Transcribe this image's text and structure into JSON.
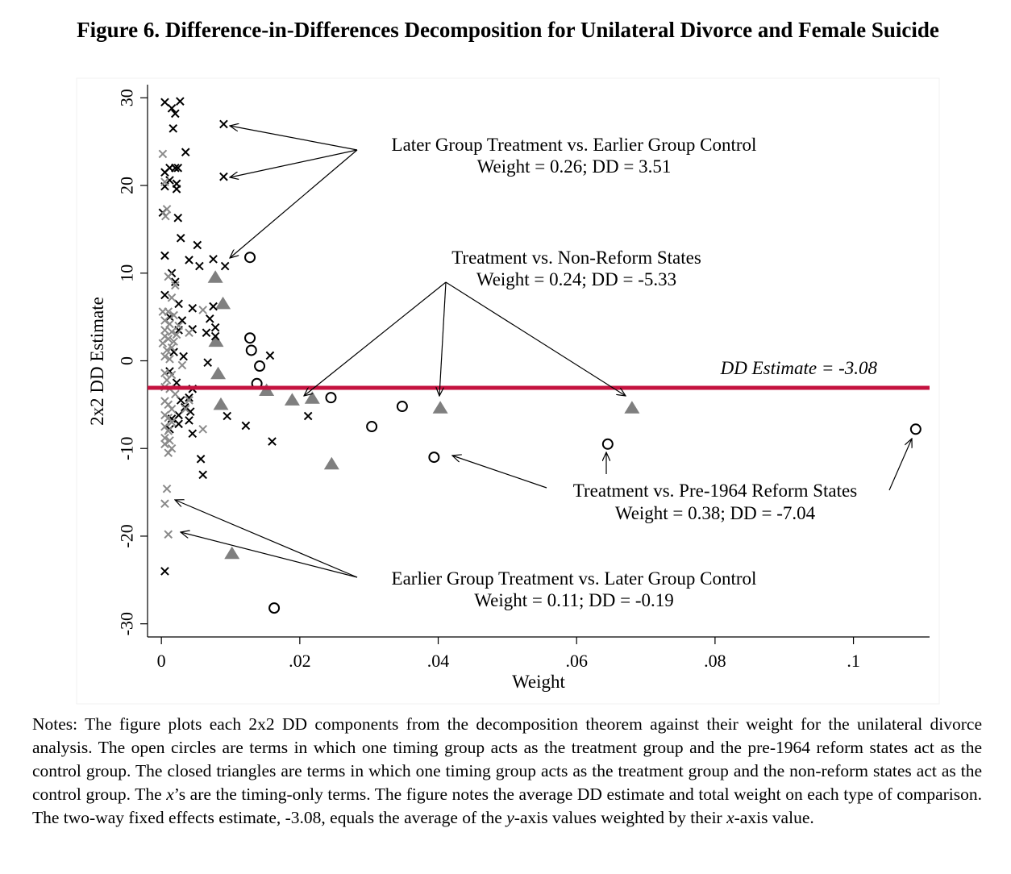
{
  "figure": {
    "title": "Figure 6. Difference-in-Differences Decomposition for Unilateral Divorce and Female Suicide",
    "notes_html": "Notes: The figure plots each 2x2 DD components from the decomposition theorem against their weight for the unilateral divorce analysis. The open circles are terms in which one timing group acts as the treatment group and the pre-1964 reform states act as the control group. The closed triangles are terms in which one timing group acts as the treatment group and the non-reform states act as the control group. The <i>x</i>’s are the timing-only terms. The figure notes the average DD estimate and total weight on each type of comparison. The two-way fixed effects estimate, -3.08, equals the average of the <i>y</i>-axis values weighted by their <i>x</i>-axis value."
  },
  "chart_data": {
    "type": "scatter",
    "xlabel": "Weight",
    "ylabel": "2x2 DD Estimate",
    "xlim": [
      -0.002,
      0.111
    ],
    "ylim": [
      -31.5,
      31.5
    ],
    "x_ticks": [
      0,
      0.02,
      0.04,
      0.06,
      0.08,
      0.1
    ],
    "x_tick_labels": [
      "0",
      ".02",
      ".04",
      ".06",
      ".08",
      ".1"
    ],
    "y_ticks": [
      -30,
      -20,
      -10,
      0,
      10,
      20,
      30
    ],
    "y_tick_labels": [
      "-30",
      "-20",
      "-10",
      "0",
      "10",
      "20",
      "30"
    ],
    "grid": false,
    "reference_line": {
      "y": -3.08,
      "color": "#c4123f",
      "label": "DD Estimate = -3.08"
    },
    "colors": {
      "black_x": "#000000",
      "gray_x": "#8a8a8a",
      "triangle": "#7f7f7f",
      "circle": "#000000"
    },
    "series": [
      {
        "marker": "circle-open",
        "points": [
          [
            0.0128,
            11.8
          ],
          [
            0.0128,
            2.6
          ],
          [
            0.013,
            1.2
          ],
          [
            0.0142,
            -0.6
          ],
          [
            0.0138,
            -2.6
          ],
          [
            0.0245,
            -4.2
          ],
          [
            0.0163,
            -28.2
          ],
          [
            0.0304,
            -7.5
          ],
          [
            0.0348,
            -5.2
          ],
          [
            0.0394,
            -11.0
          ],
          [
            0.0645,
            -9.5
          ],
          [
            0.109,
            -7.8
          ]
        ]
      },
      {
        "marker": "triangle-filled",
        "points": [
          [
            0.0078,
            9.5
          ],
          [
            0.0089,
            6.5
          ],
          [
            0.0079,
            2.2
          ],
          [
            0.0082,
            -1.5
          ],
          [
            0.0086,
            -5.0
          ],
          [
            0.0152,
            -3.4
          ],
          [
            0.0189,
            -4.5
          ],
          [
            0.0218,
            -4.3
          ],
          [
            0.0403,
            -5.4
          ],
          [
            0.068,
            -5.4
          ],
          [
            0.0246,
            -11.8
          ],
          [
            0.0102,
            -22.0
          ]
        ]
      },
      {
        "marker": "x-black",
        "points": [
          [
            0.0005,
            29.5
          ],
          [
            0.0015,
            28.8
          ],
          [
            0.0027,
            29.6
          ],
          [
            0.002,
            28.2
          ],
          [
            0.0017,
            26.5
          ],
          [
            0.009,
            27.0
          ],
          [
            0.0035,
            23.8
          ],
          [
            0.0012,
            22.0
          ],
          [
            0.002,
            22.0
          ],
          [
            0.0024,
            22.0
          ],
          [
            0.0005,
            21.5
          ],
          [
            0.009,
            21.0
          ],
          [
            0.0012,
            20.6
          ],
          [
            0.0022,
            20.2
          ],
          [
            0.0005,
            19.9
          ],
          [
            0.0022,
            19.6
          ],
          [
            0.0002,
            16.9
          ],
          [
            0.0024,
            16.3
          ],
          [
            0.0028,
            14.0
          ],
          [
            0.0052,
            13.2
          ],
          [
            0.0005,
            12.0
          ],
          [
            0.004,
            11.5
          ],
          [
            0.0055,
            10.8
          ],
          [
            0.0075,
            11.6
          ],
          [
            0.0092,
            10.8
          ],
          [
            0.0015,
            10.0
          ],
          [
            0.002,
            9.0
          ],
          [
            0.0005,
            7.5
          ],
          [
            0.0025,
            6.5
          ],
          [
            0.0045,
            6.0
          ],
          [
            0.0075,
            6.2
          ],
          [
            0.007,
            4.8
          ],
          [
            0.0012,
            5.0
          ],
          [
            0.003,
            4.6
          ],
          [
            0.0078,
            3.8
          ],
          [
            0.0045,
            3.6
          ],
          [
            0.0025,
            3.5
          ],
          [
            0.0065,
            3.2
          ],
          [
            0.0078,
            2.8
          ],
          [
            0.0018,
            1.0
          ],
          [
            0.0032,
            0.5
          ],
          [
            0.0157,
            0.6
          ],
          [
            0.0067,
            -0.2
          ],
          [
            0.0012,
            -1.2
          ],
          [
            0.0022,
            -2.5
          ],
          [
            0.0045,
            -3.2
          ],
          [
            0.0028,
            -4.5
          ],
          [
            0.004,
            -4.2
          ],
          [
            0.0034,
            -5.3
          ],
          [
            0.0042,
            -5.8
          ],
          [
            0.0025,
            -6.2
          ],
          [
            0.0015,
            -6.6
          ],
          [
            0.004,
            -6.8
          ],
          [
            0.0095,
            -6.3
          ],
          [
            0.0212,
            -6.3
          ],
          [
            0.0122,
            -7.4
          ],
          [
            0.0025,
            -7.2
          ],
          [
            0.0012,
            -7.8
          ],
          [
            0.0045,
            -8.3
          ],
          [
            0.016,
            -9.2
          ],
          [
            0.0057,
            -11.2
          ],
          [
            0.006,
            -13.0
          ],
          [
            0.0005,
            -24.0
          ]
        ]
      },
      {
        "marker": "x-gray",
        "points": [
          [
            0.0002,
            23.6
          ],
          [
            0.0005,
            20.4
          ],
          [
            0.0008,
            17.3
          ],
          [
            0.0006,
            16.5
          ],
          [
            0.001,
            9.6
          ],
          [
            0.002,
            8.6
          ],
          [
            0.0015,
            7.2
          ],
          [
            0.0002,
            5.6
          ],
          [
            0.001,
            5.6
          ],
          [
            0.0018,
            5.2
          ],
          [
            0.0005,
            4.6
          ],
          [
            0.0012,
            4.2
          ],
          [
            0.0025,
            4.0
          ],
          [
            0.0005,
            3.5
          ],
          [
            0.0015,
            3.3
          ],
          [
            0.0022,
            3.0
          ],
          [
            0.004,
            3.2
          ],
          [
            0.006,
            5.8
          ],
          [
            0.0005,
            2.8
          ],
          [
            0.001,
            2.5
          ],
          [
            0.0002,
            2.0
          ],
          [
            0.0018,
            2.2
          ],
          [
            0.0008,
            1.2
          ],
          [
            0.0015,
            1.5
          ],
          [
            0.0005,
            0.5
          ],
          [
            0.0012,
            0.2
          ],
          [
            0.003,
            -0.5
          ],
          [
            0.0005,
            -1.4
          ],
          [
            0.0015,
            -1.6
          ],
          [
            0.0008,
            -2.2
          ],
          [
            0.0005,
            -3.0
          ],
          [
            0.0012,
            -3.2
          ],
          [
            0.002,
            -3.8
          ],
          [
            0.004,
            -4.5
          ],
          [
            0.0005,
            -4.6
          ],
          [
            0.001,
            -5.0
          ],
          [
            0.0015,
            -5.5
          ],
          [
            0.0035,
            -5.5
          ],
          [
            0.0005,
            -6.2
          ],
          [
            0.001,
            -6.5
          ],
          [
            0.0015,
            -7.0
          ],
          [
            0.0005,
            -7.5
          ],
          [
            0.006,
            -7.8
          ],
          [
            0.001,
            -8.0
          ],
          [
            0.0005,
            -8.8
          ],
          [
            0.0012,
            -9.1
          ],
          [
            0.0005,
            -9.5
          ],
          [
            0.0015,
            -10.0
          ],
          [
            0.001,
            -10.5
          ],
          [
            0.0008,
            -14.6
          ],
          [
            0.0005,
            -16.3
          ],
          [
            0.001,
            -19.8
          ]
        ]
      }
    ],
    "annotations": [
      {
        "line1": "Later Group Treatment vs. Earlier Group Control",
        "line2": "Weight = 0.26; DD = 3.51"
      },
      {
        "line1": "Treatment vs. Non-Reform States",
        "line2": "Weight = 0.24; DD = -5.33"
      },
      {
        "line1": "Treatment vs. Pre-1964 Reform States",
        "line2": "Weight = 0.38; DD = -7.04"
      },
      {
        "line1": "Earlier Group Treatment vs. Later Group Control",
        "line2": "Weight = 0.11; DD = -0.19"
      }
    ]
  }
}
